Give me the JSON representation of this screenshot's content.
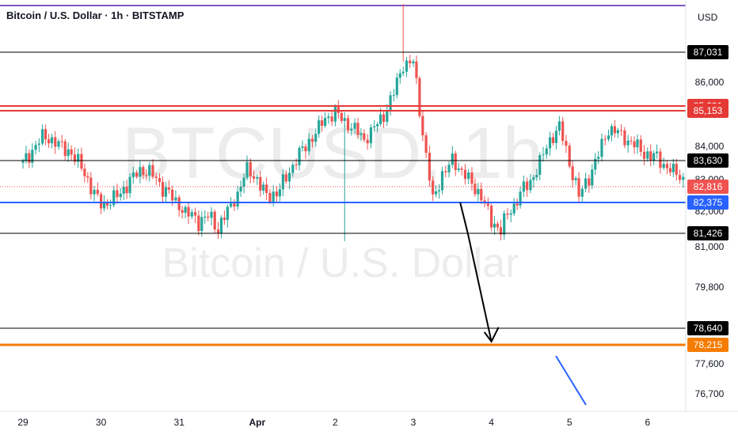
{
  "header": {
    "title": "Bitcoin / U.S. Dollar · 1h · BITSTAMP",
    "currency": "USD"
  },
  "watermark": {
    "symbol": "BTCUSD, 1h",
    "name": "Bitcoin / U.S. Dollar"
  },
  "colors": {
    "up": "#26a69a",
    "down": "#ef5350",
    "level": "#000000",
    "resistance": "#e53935",
    "support": "#2962ff",
    "target": "#f57c00",
    "current": "#ef5350",
    "top_line": "#7e57c2",
    "trend_line": "#2962ff"
  },
  "chart_data": {
    "type": "candlestick",
    "symbol": "BTCUSD",
    "exchange": "BITSTAMP",
    "interval": "1h",
    "y_axis": {
      "position": "right",
      "ticks": [
        86000,
        84000,
        83000,
        82000,
        81000,
        79800,
        77600,
        76700
      ],
      "tick_labels": [
        "86,000",
        "84,000",
        "83,000",
        "82,000",
        "81,000",
        "79,800",
        "77,600",
        "76,700"
      ]
    },
    "x_axis": {
      "tick_labels": [
        "29",
        "30",
        "31",
        "Apr",
        "2",
        "3",
        "4",
        "5",
        "6"
      ]
    },
    "horizontal_levels": [
      {
        "value": 87031,
        "label": "87,031",
        "role": "level"
      },
      {
        "value": 85291,
        "label": "85,291",
        "role": "resistance"
      },
      {
        "value": 85153,
        "label": "85,153",
        "role": "resistance"
      },
      {
        "value": 83630,
        "label": "83,630",
        "role": "level"
      },
      {
        "value": 82375,
        "label": "82,375",
        "role": "support"
      },
      {
        "value": 81426,
        "label": "81,426",
        "role": "level"
      },
      {
        "value": 78640,
        "label": "78,640",
        "role": "level"
      },
      {
        "value": 78215,
        "label": "78,215",
        "role": "target"
      }
    ],
    "current_price": {
      "value": 82816,
      "label": "82,816"
    },
    "projection": {
      "description": "drawn arrow pointing down to target",
      "points": [
        [
          5.6,
          82375
        ],
        [
          5.7,
          81400
        ],
        [
          6.0,
          78300
        ]
      ]
    },
    "candles_close": [
      [
        0.0,
        83530
      ],
      [
        0.12,
        83900
      ],
      [
        0.25,
        84310
      ],
      [
        0.37,
        84210
      ],
      [
        0.5,
        83980
      ],
      [
        0.62,
        83840
      ],
      [
        0.75,
        83400
      ],
      [
        0.87,
        82800
      ],
      [
        1.0,
        82260
      ],
      [
        1.12,
        82390
      ],
      [
        1.25,
        82640
      ],
      [
        1.37,
        82990
      ],
      [
        1.5,
        83290
      ],
      [
        1.62,
        83270
      ],
      [
        1.75,
        82870
      ],
      [
        1.87,
        82640
      ],
      [
        2.0,
        82190
      ],
      [
        2.12,
        81930
      ],
      [
        2.25,
        81740
      ],
      [
        2.37,
        81870
      ],
      [
        2.5,
        81560
      ],
      [
        2.62,
        82040
      ],
      [
        2.75,
        82620
      ],
      [
        2.87,
        83330
      ],
      [
        3.0,
        83020
      ],
      [
        3.12,
        82530
      ],
      [
        3.25,
        82650
      ],
      [
        3.37,
        83050
      ],
      [
        3.5,
        83670
      ],
      [
        3.62,
        84000
      ],
      [
        3.75,
        84460
      ],
      [
        3.87,
        84890
      ],
      [
        4.0,
        85100
      ],
      [
        4.12,
        84790
      ],
      [
        4.25,
        84560
      ],
      [
        4.37,
        84210
      ],
      [
        4.5,
        84610
      ],
      [
        4.62,
        85000
      ],
      [
        4.75,
        85700
      ],
      [
        4.87,
        86600
      ],
      [
        5.0,
        86700
      ],
      [
        5.12,
        84420
      ],
      [
        5.25,
        82400
      ],
      [
        5.37,
        83190
      ],
      [
        5.5,
        83590
      ],
      [
        5.62,
        83300
      ],
      [
        5.75,
        82860
      ],
      [
        5.87,
        82580
      ],
      [
        6.0,
        81720
      ],
      [
        6.12,
        81550
      ],
      [
        6.25,
        82040
      ],
      [
        6.37,
        82650
      ],
      [
        6.5,
        82920
      ],
      [
        6.62,
        83560
      ],
      [
        6.75,
        84190
      ],
      [
        6.87,
        84640
      ],
      [
        7.0,
        83510
      ],
      [
        7.12,
        82550
      ],
      [
        7.25,
        83090
      ],
      [
        7.37,
        83800
      ],
      [
        7.5,
        84550
      ],
      [
        7.62,
        84450
      ],
      [
        7.75,
        84180
      ],
      [
        7.87,
        83990
      ],
      [
        8.0,
        83770
      ],
      [
        8.12,
        83690
      ],
      [
        8.25,
        83400
      ],
      [
        8.37,
        83200
      ],
      [
        8.5,
        82930
      ]
    ]
  }
}
